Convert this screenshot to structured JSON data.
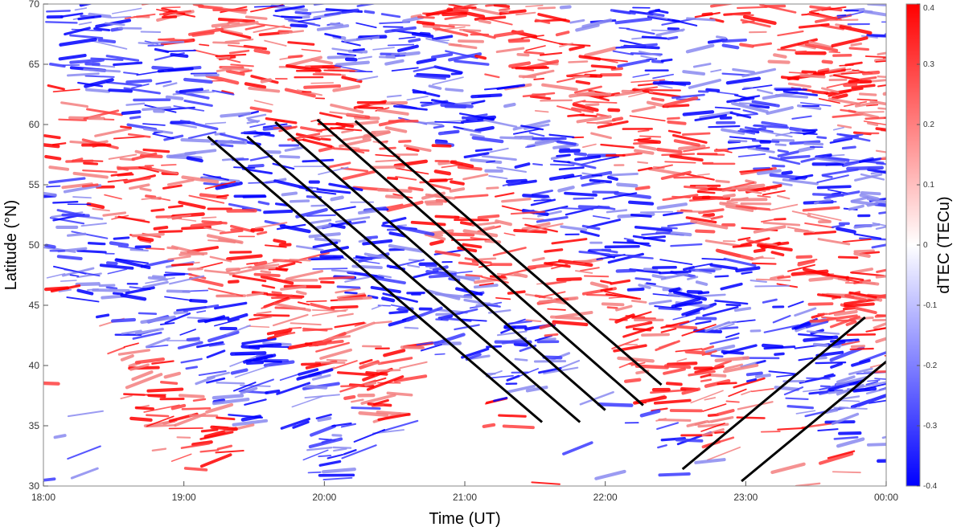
{
  "chart_data": {
    "type": "heatmap",
    "title": "",
    "xlabel": "Time (UT)",
    "ylabel": "Latitude (°N)",
    "x_range_hours": [
      18,
      24
    ],
    "ylim": [
      30,
      70
    ],
    "x_ticks": [
      {
        "hour": 18,
        "label": "18:00"
      },
      {
        "hour": 19,
        "label": "19:00"
      },
      {
        "hour": 20,
        "label": "20:00"
      },
      {
        "hour": 21,
        "label": "21:00"
      },
      {
        "hour": 22,
        "label": "22:00"
      },
      {
        "hour": 23,
        "label": "23:00"
      },
      {
        "hour": 24,
        "label": "00:00"
      }
    ],
    "y_ticks": [
      30,
      35,
      40,
      45,
      50,
      55,
      60,
      65,
      70
    ],
    "colorbar": {
      "label": "dTEC (TECu)",
      "range": [
        -0.4,
        0.4
      ],
      "ticks": [
        "0.4",
        "0.3",
        "0.2",
        "0.1",
        "0",
        "-0.1",
        "-0.2",
        "-0.3",
        "-0.4"
      ],
      "color_low": "#0000ff",
      "color_mid": "#ffffff",
      "color_high": "#ff0000"
    },
    "annotation_lines": [
      {
        "name": "southward-tid-front-1",
        "x0": 19.17,
        "y0": 59.0,
        "x1": 21.55,
        "y1": 35.3
      },
      {
        "name": "southward-tid-front-2",
        "x0": 19.45,
        "y0": 59.0,
        "x1": 21.82,
        "y1": 35.3
      },
      {
        "name": "southward-tid-front-3",
        "x0": 19.65,
        "y0": 60.2,
        "x1": 22.0,
        "y1": 36.3
      },
      {
        "name": "southward-tid-front-4",
        "x0": 19.95,
        "y0": 60.4,
        "x1": 22.27,
        "y1": 36.7
      },
      {
        "name": "southward-tid-front-5",
        "x0": 20.22,
        "y0": 60.3,
        "x1": 22.4,
        "y1": 38.4
      },
      {
        "name": "northward-tid-front-1",
        "x0": 22.55,
        "y0": 31.4,
        "x1": 23.85,
        "y1": 44.0
      },
      {
        "name": "northward-tid-front-2",
        "x0": 22.97,
        "y0": 30.4,
        "x1": 24.05,
        "y1": 40.8
      }
    ]
  }
}
